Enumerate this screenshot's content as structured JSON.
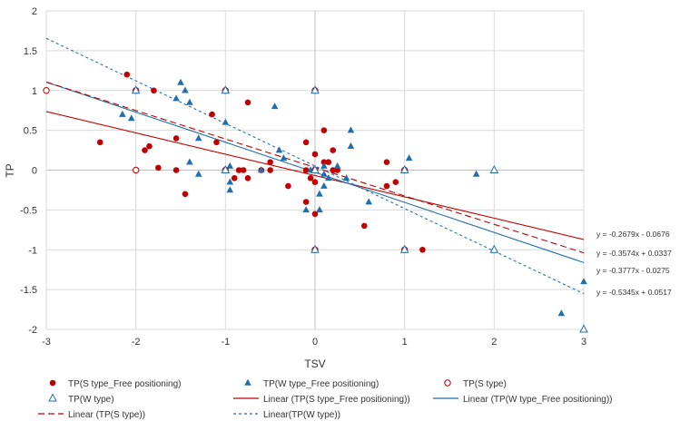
{
  "chart_data": {
    "type": "scatter",
    "xlabel": "TSV",
    "ylabel": "TP",
    "xlim": [
      -3,
      3
    ],
    "ylim": [
      -2,
      2
    ],
    "xticks": [
      -3,
      -2,
      -1,
      0,
      1,
      2,
      3
    ],
    "yticks": [
      -2,
      -1.5,
      -1,
      -0.5,
      0,
      0.5,
      1,
      1.5,
      2
    ],
    "grid": true,
    "legend_position": "bottom",
    "series": [
      {
        "name": "TP(S type_Free positioning)",
        "marker": "circle-filled",
        "color": "#c00000",
        "points": [
          [
            -2.4,
            0.35
          ],
          [
            -2.1,
            1.2
          ],
          [
            -1.9,
            0.25
          ],
          [
            -1.85,
            0.3
          ],
          [
            -1.8,
            1.0
          ],
          [
            -1.75,
            0.03
          ],
          [
            -1.55,
            0.4
          ],
          [
            -1.55,
            0.0
          ],
          [
            -1.45,
            -0.3
          ],
          [
            -1.15,
            0.7
          ],
          [
            -1.1,
            0.35
          ],
          [
            -1.0,
            0.0
          ],
          [
            -0.9,
            -0.1
          ],
          [
            -0.85,
            0.0
          ],
          [
            -0.8,
            0.0
          ],
          [
            -0.75,
            -0.1
          ],
          [
            -0.75,
            0.85
          ],
          [
            -0.6,
            0.0
          ],
          [
            -0.5,
            0.0
          ],
          [
            -0.5,
            0.1
          ],
          [
            -0.3,
            -0.2
          ],
          [
            -0.1,
            0.35
          ],
          [
            -0.1,
            0.0
          ],
          [
            -0.1,
            -0.4
          ],
          [
            -0.05,
            -0.1
          ],
          [
            0.0,
            0.2
          ],
          [
            0.0,
            -0.15
          ],
          [
            0.0,
            -0.55
          ],
          [
            0.1,
            0.5
          ],
          [
            0.1,
            0.1
          ],
          [
            0.15,
            0.1
          ],
          [
            0.2,
            0.25
          ],
          [
            0.2,
            0.0
          ],
          [
            0.25,
            0.0
          ],
          [
            0.55,
            -0.7
          ],
          [
            0.8,
            0.1
          ],
          [
            0.8,
            -0.2
          ],
          [
            0.9,
            -0.15
          ],
          [
            1.2,
            -1.0
          ]
        ]
      },
      {
        "name": "TP(W type_Free positioning)",
        "marker": "triangle-filled",
        "color": "#1f6fb0",
        "points": [
          [
            -2.15,
            0.7
          ],
          [
            -2.05,
            0.65
          ],
          [
            -1.55,
            0.9
          ],
          [
            -1.5,
            1.1
          ],
          [
            -1.45,
            1.0
          ],
          [
            -1.4,
            0.85
          ],
          [
            -1.4,
            0.1
          ],
          [
            -1.3,
            0.4
          ],
          [
            -1.3,
            -0.05
          ],
          [
            -1.0,
            0.6
          ],
          [
            -0.95,
            0.05
          ],
          [
            -0.95,
            -0.15
          ],
          [
            -0.95,
            -0.25
          ],
          [
            -0.6,
            0.0
          ],
          [
            -0.45,
            0.8
          ],
          [
            -0.4,
            0.25
          ],
          [
            -0.35,
            0.15
          ],
          [
            -0.1,
            -0.5
          ],
          [
            -0.05,
            0.0
          ],
          [
            0.05,
            -0.3
          ],
          [
            0.05,
            -0.5
          ],
          [
            0.1,
            0.05
          ],
          [
            0.1,
            -0.05
          ],
          [
            0.1,
            -0.2
          ],
          [
            0.15,
            -0.1
          ],
          [
            0.25,
            0.05
          ],
          [
            0.35,
            -0.1
          ],
          [
            0.4,
            0.5
          ],
          [
            0.4,
            0.3
          ],
          [
            0.6,
            -0.4
          ],
          [
            1.05,
            0.15
          ],
          [
            1.8,
            -0.05
          ],
          [
            2.75,
            -1.8
          ],
          [
            3.0,
            -1.4
          ]
        ]
      },
      {
        "name": "TP(S type)",
        "marker": "circle-open",
        "color": "#c00000",
        "points": [
          [
            -3,
            1
          ],
          [
            -2,
            1
          ],
          [
            -2,
            0
          ],
          [
            -1,
            1
          ],
          [
            -1,
            0
          ],
          [
            0,
            1
          ],
          [
            0,
            0
          ],
          [
            0,
            -1
          ],
          [
            1,
            0
          ],
          [
            1,
            -1
          ]
        ]
      },
      {
        "name": "TP(W type)",
        "marker": "triangle-open",
        "color": "#1f6fb0",
        "points": [
          [
            -2,
            1
          ],
          [
            -1,
            1
          ],
          [
            -1,
            0
          ],
          [
            0,
            1
          ],
          [
            0,
            0
          ],
          [
            0,
            -1
          ],
          [
            1,
            0
          ],
          [
            1,
            -1
          ],
          [
            2,
            0
          ],
          [
            2,
            -1
          ],
          [
            3,
            -2
          ]
        ]
      }
    ],
    "trendlines": [
      {
        "name": "Linear (TP(S type_Free positioning))",
        "slope": -0.2679,
        "intercept": -0.0676,
        "color": "#c00000",
        "dash": "solid",
        "equation": "y = -0.2679x - 0.0676"
      },
      {
        "name": "Linear (TP(W type_Free positioning))",
        "slope": -0.3777,
        "intercept": -0.0275,
        "color": "#1f6fb0",
        "dash": "solid",
        "equation": "y = -0.3777x - 0.0275"
      },
      {
        "name": "Linear (TP(S type))",
        "slope": -0.3574,
        "intercept": 0.0337,
        "color": "#c00000",
        "dash": "dashed",
        "equation": "y = -0.3574x + 0.0337"
      },
      {
        "name": "Linear(TP(W type))",
        "slope": -0.5345,
        "intercept": 0.0517,
        "color": "#1f6fb0",
        "dash": "dotted",
        "equation": "y = -0.5345x + 0.0517"
      }
    ],
    "equation_order": [
      0,
      2,
      1,
      3
    ],
    "legend_order": [
      {
        "kind": "series",
        "index": 0
      },
      {
        "kind": "series",
        "index": 1
      },
      {
        "kind": "series",
        "index": 2
      },
      {
        "kind": "series",
        "index": 3
      },
      {
        "kind": "trend",
        "index": 0
      },
      {
        "kind": "trend",
        "index": 1
      },
      {
        "kind": "trend",
        "index": 2
      },
      {
        "kind": "trend",
        "index": 3
      }
    ]
  }
}
